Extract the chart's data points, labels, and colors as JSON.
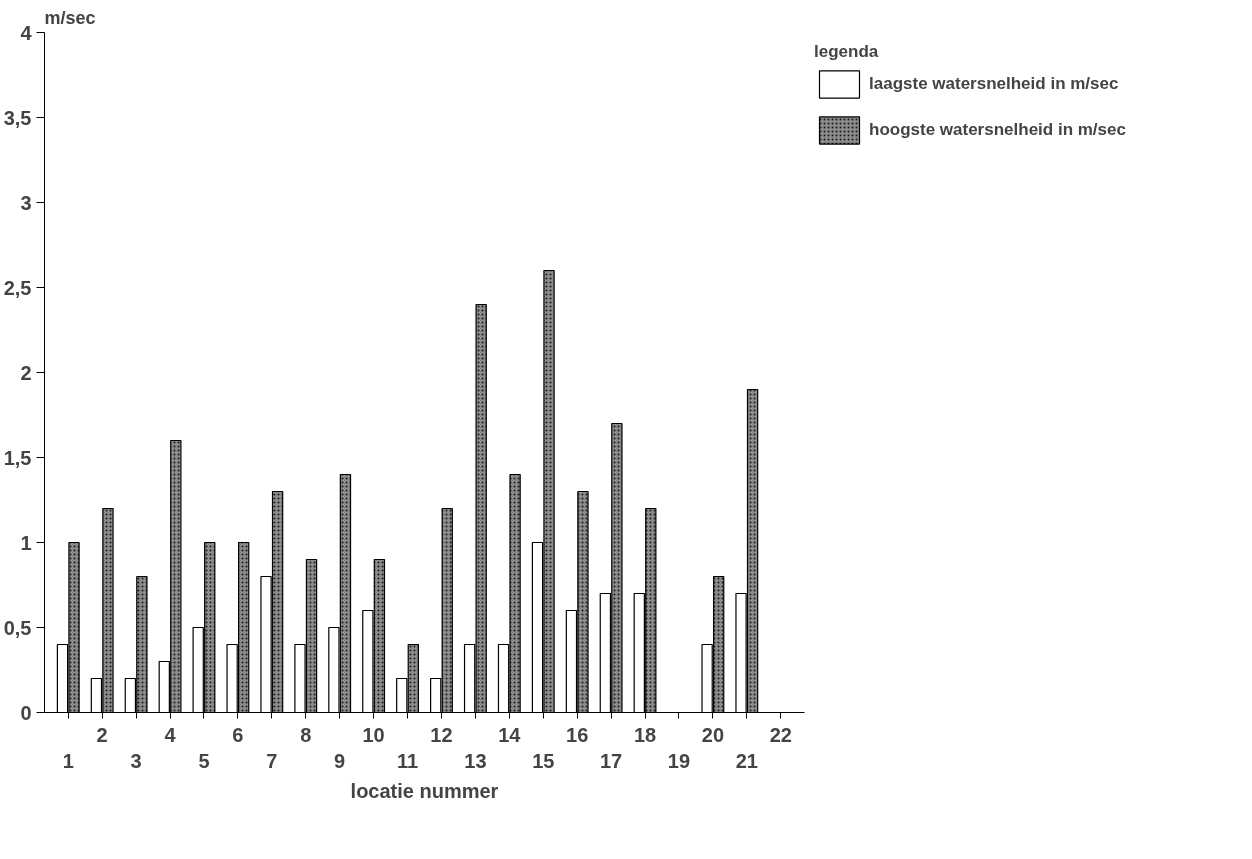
{
  "chart_data": {
    "type": "bar",
    "ylabel": "m/sec",
    "xlabel": "locatie nummer",
    "legend_title": "legenda",
    "categories": [
      "1",
      "2",
      "3",
      "4",
      "5",
      "6",
      "7",
      "8",
      "9",
      "10",
      "11",
      "12",
      "13",
      "14",
      "15",
      "16",
      "17",
      "18",
      "19",
      "20",
      "21",
      "22"
    ],
    "series": [
      {
        "name": "laagste watersnelheid in m/sec",
        "color": "#ffffff",
        "values": [
          0.4,
          0.2,
          0.2,
          0.3,
          0.5,
          0.4,
          0.8,
          0.4,
          0.5,
          0.6,
          0.2,
          0.2,
          0.4,
          0.4,
          1.0,
          0.6,
          0.7,
          0.7,
          null,
          0.4,
          0.7,
          null
        ]
      },
      {
        "name": "hoogste watersnelheid in m/sec",
        "color": "#8c8c8c",
        "values": [
          1.0,
          1.2,
          0.8,
          1.6,
          1.0,
          1.0,
          1.3,
          0.9,
          1.4,
          0.9,
          0.4,
          1.2,
          2.4,
          1.4,
          2.6,
          1.3,
          1.7,
          1.2,
          null,
          0.8,
          1.9,
          null
        ]
      }
    ],
    "ylim": [
      0,
      4
    ],
    "yticks": [
      0,
      {
        "value": 0.5,
        "label": "0,5"
      },
      1,
      {
        "value": 1.5,
        "label": "1,5"
      },
      2,
      {
        "value": 2.5,
        "label": "2,5"
      },
      3,
      {
        "value": 3.5,
        "label": "3,5"
      },
      4
    ],
    "grid": false,
    "legend": "top right"
  }
}
